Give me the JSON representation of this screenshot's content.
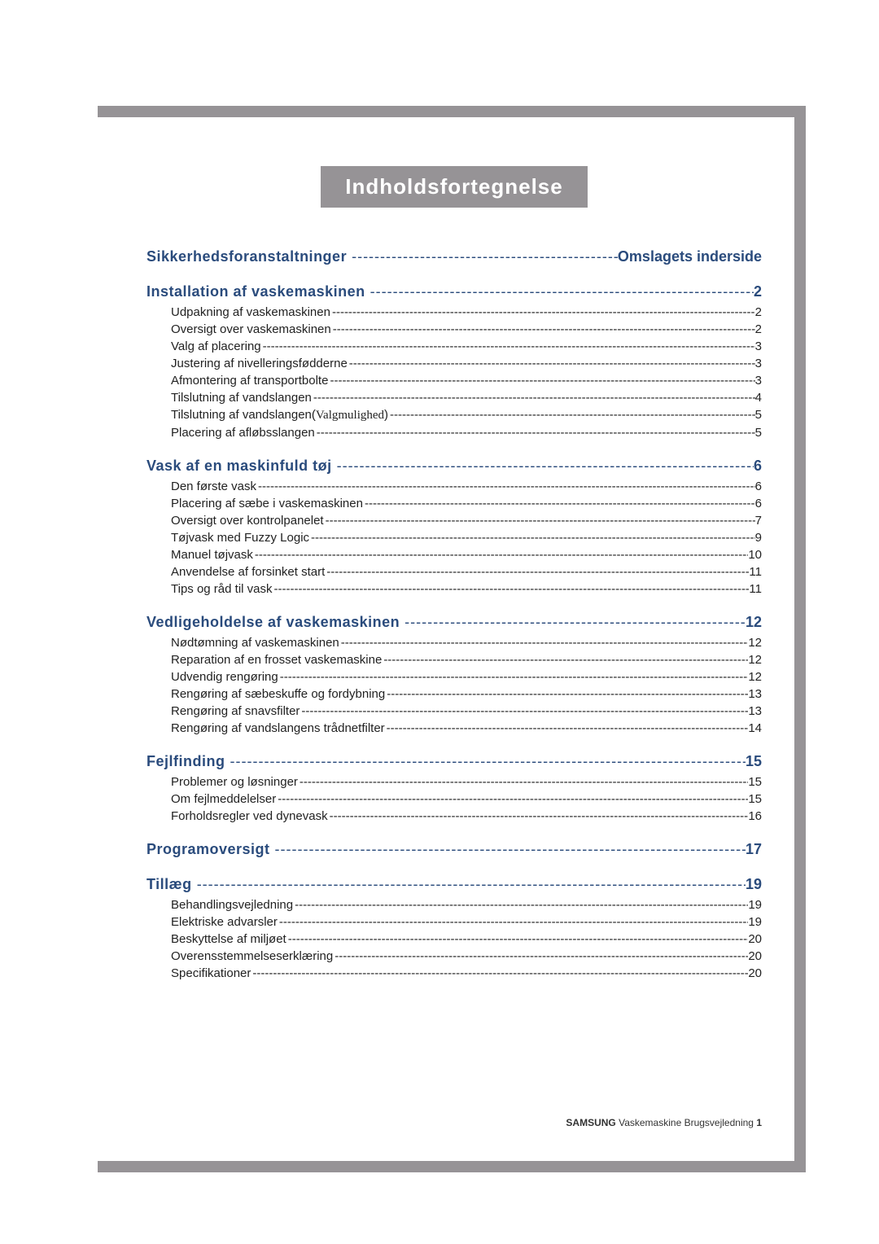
{
  "colors": {
    "frame": "#969396",
    "heading_text": "#2a4b7c",
    "body_text": "#222222",
    "title_bg": "#969396",
    "title_fg": "#ffffff",
    "background": "#ffffff"
  },
  "typography": {
    "title_fontsize": 26,
    "heading_fontsize": 18,
    "sub_fontsize": 15,
    "footer_fontsize": 12
  },
  "title": "Indholdsfortegnelse",
  "sections": [
    {
      "label": "Sikkerhedsforanstaltninger",
      "page": "Omslagets inderside",
      "items": []
    },
    {
      "label": "Installation af vaskemaskinen",
      "page": "2",
      "items": [
        {
          "label": "Udpakning af vaskemaskinen",
          "page": "2"
        },
        {
          "label": "Oversigt over vaskemaskinen",
          "page": "2"
        },
        {
          "label": "Valg af placering",
          "page": "3"
        },
        {
          "label": "Justering af nivelleringsfødderne",
          "page": "3"
        },
        {
          "label": "Afmontering af transportbolte",
          "page": "3"
        },
        {
          "label": "Tilslutning af vandslangen",
          "page": "4"
        },
        {
          "label": "Tilslutning af vandslangen(",
          "opt": "Valgmulighed",
          "label_after": ")",
          "page": "5"
        },
        {
          "label": "Placering af afløbsslangen",
          "page": "5"
        }
      ]
    },
    {
      "label": "Vask af en maskinfuld tøj",
      "page": "6",
      "items": [
        {
          "label": "Den første vask",
          "page": "6"
        },
        {
          "label": "Placering af sæbe i vaskemaskinen",
          "page": "6"
        },
        {
          "label": "Oversigt over kontrolpanelet",
          "page": "7"
        },
        {
          "label": "Tøjvask med Fuzzy Logic",
          "page": "9"
        },
        {
          "label": "Manuel tøjvask",
          "page": "10"
        },
        {
          "label": "Anvendelse af forsinket start",
          "page": "11"
        },
        {
          "label": "Tips og råd til vask",
          "page": "11"
        }
      ]
    },
    {
      "label": "Vedligeholdelse af vaskemaskinen",
      "page": "12",
      "items": [
        {
          "label": "Nødtømning af vaskemaskinen",
          "page": "12"
        },
        {
          "label": "Reparation af en frosset vaskemaskine",
          "page": "12"
        },
        {
          "label": "Udvendig rengøring",
          "page": "12"
        },
        {
          "label": "Rengøring af sæbeskuffe og fordybning",
          "page": "13"
        },
        {
          "label": "Rengøring af snavsfilter",
          "page": "13"
        },
        {
          "label": "Rengøring af vandslangens trådnetfilter",
          "page": "14"
        }
      ]
    },
    {
      "label": "Fejlfinding",
      "page": "15",
      "items": [
        {
          "label": "Problemer og løsninger",
          "page": "15"
        },
        {
          "label": "Om fejlmeddelelser",
          "page": "15"
        },
        {
          "label": "Forholdsregler ved dynevask",
          "page": "16"
        }
      ]
    },
    {
      "label": "Programoversigt",
      "page": "17",
      "items": []
    },
    {
      "label": "Tillæg",
      "page": "19",
      "items": [
        {
          "label": "Behandlingsvejledning",
          "page": "19"
        },
        {
          "label": "Elektriske advarsler",
          "page": "19"
        },
        {
          "label": "Beskyttelse af miljøet",
          "page": "20"
        },
        {
          "label": "Overensstemmelseserklæring",
          "page": "20"
        },
        {
          "label": "Specifikationer",
          "page": "20"
        }
      ]
    }
  ],
  "footer": {
    "brand": "SAMSUNG",
    "text": "Vaskemaskine Brugsvejledning",
    "page_no": "1"
  }
}
